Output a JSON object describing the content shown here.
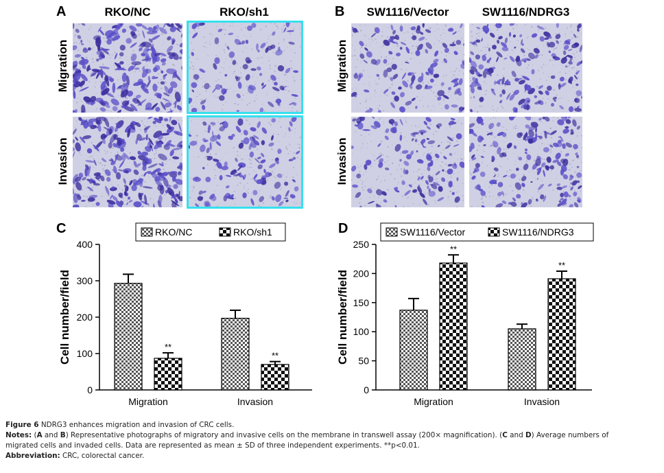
{
  "panels": {
    "A": {
      "letter": "A",
      "columns": [
        "RKO/NC",
        "RKO/sh1"
      ],
      "rows": [
        "Migration",
        "Invasion"
      ]
    },
    "B": {
      "letter": "B",
      "columns": [
        "SW1116/Vector",
        "SW1116/NDRG3"
      ],
      "rows": [
        "Migration",
        "Invasion"
      ]
    }
  },
  "chart_data": [
    {
      "panel": "C",
      "type": "bar",
      "categories": [
        "Migration",
        "Invasion"
      ],
      "series": [
        {
          "name": "RKO/NC",
          "values": [
            293,
            197
          ],
          "errors": [
            25,
            22
          ],
          "pattern": "checker-fine"
        },
        {
          "name": "RKO/sh1",
          "values": [
            87,
            70
          ],
          "errors": [
            15,
            8
          ],
          "pattern": "checker-coarse"
        }
      ],
      "significance": [
        null,
        "**"
      ],
      "ylabel": "Cell number/field",
      "ylim": [
        0,
        400
      ],
      "yticks": [
        0,
        100,
        200,
        300,
        400
      ],
      "legend": "top"
    },
    {
      "panel": "D",
      "type": "bar",
      "categories": [
        "Migration",
        "Invasion"
      ],
      "series": [
        {
          "name": "SW1116/Vector",
          "values": [
            137,
            105
          ],
          "errors": [
            20,
            8
          ],
          "pattern": "checker-fine"
        },
        {
          "name": "SW1116/NDRG3",
          "values": [
            218,
            191
          ],
          "errors": [
            14,
            13
          ],
          "pattern": "checker-coarse"
        }
      ],
      "significance": [
        null,
        "**"
      ],
      "ylabel": "Cell number/field",
      "ylim": [
        0,
        250
      ],
      "yticks": [
        0,
        50,
        100,
        150,
        200,
        250
      ],
      "legend": "top"
    }
  ],
  "caption": {
    "figure_label": "Figure 6",
    "title": " NDRG3 enhances migration and invasion of CRC cells.",
    "notes_label": "Notes:",
    "notes_1_pre": " (",
    "A": "A",
    "and1": " and ",
    "B": "B",
    "notes_1_mid": ") Representative photographs of migratory and invasive cells on the membrane in transwell assay (200× magnification). (",
    "C": "C",
    "and2": " and ",
    "D": "D",
    "notes_1_end": ") Average numbers of",
    "notes_2": "migrated cells and invaded cells. Data are represented as mean ± SD of three independent experiments. **p<0.01.",
    "abbrev_label": "Abbreviation:",
    "abbrev_text": " CRC, colorectal cancer."
  },
  "colors": {
    "stain": "#5a4fc8",
    "stain_dark": "#3d2f9e",
    "background_membrane": "#cfd0e4",
    "highlight_border": "#36e0ee"
  }
}
